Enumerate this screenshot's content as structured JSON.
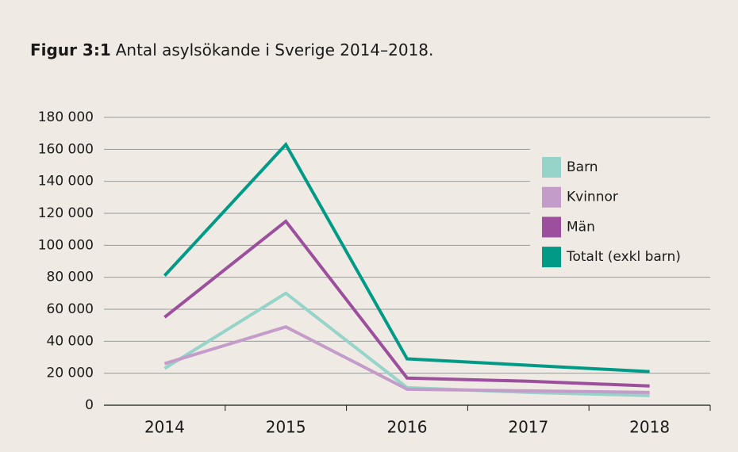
{
  "chart_data": {
    "type": "line",
    "title_number": "Figur 3:1",
    "title": "Antal asylsökande i Sverige 2014–2018.",
    "categories": [
      "2014",
      "2015",
      "2016",
      "2017",
      "2018"
    ],
    "series": [
      {
        "name": "Barn",
        "color": "#96d3c9",
        "values": [
          23000,
          70000,
          11000,
          8000,
          6000
        ]
      },
      {
        "name": "Kvinnor",
        "color": "#c39cca",
        "values": [
          26000,
          49000,
          10000,
          9000,
          8000
        ]
      },
      {
        "name": "Män",
        "color": "#9b4f9d",
        "values": [
          55000,
          115000,
          17000,
          15000,
          12000
        ]
      },
      {
        "name": "Totalt (exkl barn)",
        "color": "#009a87",
        "values": [
          81000,
          163000,
          29000,
          25000,
          21000
        ]
      }
    ],
    "ylim": [
      0,
      180000
    ],
    "yticks": [
      0,
      {
        "value": 20000,
        "label": "20 000"
      },
      {
        "value": 40000,
        "label": "40 000"
      },
      {
        "value": 60000,
        "label": "60 000"
      },
      {
        "value": 80000,
        "label": "80 000"
      },
      {
        "value": 100000,
        "label": "100 000"
      },
      {
        "value": 120000,
        "label": "120 000"
      },
      {
        "value": 140000,
        "label": "140 000"
      },
      {
        "value": 160000,
        "label": "160 000"
      },
      {
        "value": 180000,
        "label": "180 000"
      }
    ],
    "grid": true,
    "legend": "upper right"
  }
}
